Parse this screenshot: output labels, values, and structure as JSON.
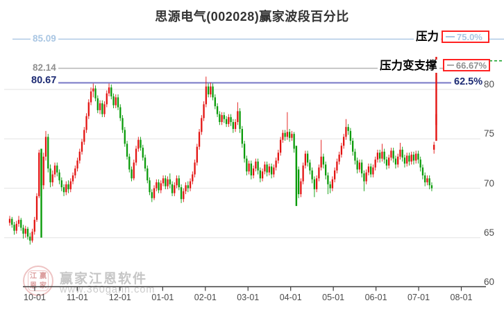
{
  "title": "思源电气(002028)赢家波段百分比",
  "levels": [
    {
      "price": 85.09,
      "price_label": "85.09",
      "percent": "75.0%",
      "label": "压力",
      "line_color": "#a9c6e3",
      "text_color": "#a9c6e3",
      "boxed": true,
      "line_width": 1.4
    },
    {
      "price": 82.14,
      "price_label": "82.14",
      "percent": "66.67%",
      "label": "压力变支撑",
      "line_color": "#b5b5b5",
      "text_color": "#8f8f8f",
      "boxed": true,
      "line_width": 1.4
    },
    {
      "price": 80.67,
      "price_label": "80.67",
      "percent": "62.5%",
      "label": "",
      "line_color": "#7d7dc8",
      "text_color": "#1c2a73",
      "boxed": false,
      "line_width": 2.2
    }
  ],
  "right_dashed_segment": {
    "color": "#1aa32b",
    "at_y_price": 82.9
  },
  "y_axis": {
    "ticks": [
      80,
      75,
      70,
      65,
      60
    ]
  },
  "x_axis": {
    "ticks": [
      "10-01",
      "11-01",
      "12-01",
      "01-01",
      "02-01",
      "03-01",
      "04-01",
      "05-01",
      "06-01",
      "07-01",
      "08-01"
    ]
  },
  "watermark": {
    "line1": "赢家江恩软件",
    "line2": "www.360gann.com",
    "logo_chars": [
      "江",
      "赢",
      "恩",
      "家"
    ]
  },
  "chart_data": {
    "type": "candlestick",
    "title": "思源电气(002028)赢家波段百分比",
    "ylim": [
      60,
      85.8
    ],
    "x_tick_labels": [
      "10-01",
      "11-01",
      "12-01",
      "01-01",
      "02-01",
      "03-01",
      "04-01",
      "05-01",
      "06-01",
      "07-01",
      "08-01"
    ],
    "up_color": "#e31412",
    "down_color": "#0a9b0a",
    "grid": true,
    "candles_ohlc": [
      [
        66.5,
        67.2,
        66.2,
        66.9
      ],
      [
        66.9,
        67.1,
        66.0,
        66.3
      ],
      [
        66.3,
        66.6,
        65.3,
        65.7
      ],
      [
        65.7,
        66.7,
        65.4,
        66.4
      ],
      [
        66.4,
        67.2,
        66.1,
        66.8
      ],
      [
        66.8,
        67.0,
        65.7,
        66.0
      ],
      [
        66.0,
        66.3,
        64.9,
        65.4
      ],
      [
        65.4,
        66.2,
        65.0,
        65.9
      ],
      [
        65.9,
        66.1,
        64.8,
        65.1
      ],
      [
        65.1,
        65.5,
        64.3,
        64.7
      ],
      [
        64.7,
        65.9,
        64.5,
        65.6
      ],
      [
        65.6,
        67.1,
        65.3,
        66.8
      ],
      [
        66.8,
        69.5,
        66.6,
        69.2
      ],
      [
        69.2,
        73.9,
        69.0,
        73.6
      ],
      [
        73.6,
        74.0,
        65.0,
        70.3
      ],
      [
        70.3,
        73.6,
        69.9,
        73.2
      ],
      [
        73.2,
        75.8,
        72.8,
        75.2
      ],
      [
        75.2,
        75.5,
        71.6,
        72.0
      ],
      [
        72.0,
        72.4,
        70.1,
        70.6
      ],
      [
        70.6,
        71.8,
        70.2,
        71.4
      ],
      [
        71.4,
        72.6,
        71.1,
        72.3
      ],
      [
        72.3,
        72.6,
        71.2,
        71.6
      ],
      [
        71.6,
        71.9,
        70.4,
        70.8
      ],
      [
        70.8,
        71.1,
        69.7,
        70.1
      ],
      [
        70.1,
        70.4,
        69.2,
        69.6
      ],
      [
        69.6,
        70.7,
        69.3,
        70.4
      ],
      [
        70.4,
        70.8,
        69.5,
        69.9
      ],
      [
        69.9,
        71.0,
        69.6,
        70.7
      ],
      [
        70.7,
        71.6,
        70.4,
        71.3
      ],
      [
        71.3,
        72.3,
        71.0,
        72.0
      ],
      [
        72.0,
        73.1,
        71.7,
        72.8
      ],
      [
        72.8,
        74.0,
        72.5,
        73.7
      ],
      [
        73.7,
        75.0,
        73.4,
        74.7
      ],
      [
        74.7,
        76.2,
        74.4,
        75.9
      ],
      [
        75.9,
        77.6,
        75.6,
        77.3
      ],
      [
        77.3,
        79.0,
        77.0,
        78.7
      ],
      [
        78.7,
        80.2,
        78.4,
        79.8
      ],
      [
        79.8,
        80.6,
        79.2,
        80.1
      ],
      [
        80.1,
        80.4,
        78.8,
        79.1
      ],
      [
        79.1,
        79.4,
        77.6,
        77.9
      ],
      [
        77.9,
        78.9,
        77.5,
        78.6
      ],
      [
        78.6,
        78.9,
        77.2,
        77.5
      ],
      [
        77.5,
        78.8,
        77.2,
        78.5
      ],
      [
        78.5,
        79.9,
        78.2,
        79.6
      ],
      [
        79.6,
        80.6,
        79.3,
        80.2
      ],
      [
        80.2,
        80.5,
        79.0,
        79.3
      ],
      [
        79.3,
        79.6,
        78.1,
        78.4
      ],
      [
        78.4,
        79.5,
        78.1,
        79.2
      ],
      [
        79.2,
        79.5,
        77.9,
        78.2
      ],
      [
        78.2,
        78.5,
        76.8,
        77.1
      ],
      [
        77.1,
        77.4,
        75.6,
        75.9
      ],
      [
        75.9,
        76.2,
        74.2,
        74.5
      ],
      [
        74.5,
        74.8,
        72.9,
        73.2
      ],
      [
        73.2,
        73.5,
        71.6,
        71.9
      ],
      [
        71.9,
        72.2,
        70.7,
        71.0
      ],
      [
        71.0,
        72.9,
        70.8,
        72.6
      ],
      [
        72.6,
        74.3,
        72.3,
        74.0
      ],
      [
        74.0,
        75.2,
        73.7,
        74.9
      ],
      [
        74.9,
        75.2,
        73.8,
        74.1
      ],
      [
        74.1,
        74.4,
        72.8,
        73.1
      ],
      [
        73.1,
        73.4,
        71.7,
        72.0
      ],
      [
        72.0,
        72.3,
        70.5,
        70.8
      ],
      [
        70.8,
        71.1,
        69.3,
        69.6
      ],
      [
        69.6,
        69.9,
        68.6,
        69.0
      ],
      [
        69.0,
        70.3,
        68.8,
        70.0
      ],
      [
        70.0,
        70.9,
        69.7,
        70.6
      ],
      [
        70.6,
        70.9,
        69.5,
        69.8
      ],
      [
        69.8,
        70.8,
        69.5,
        70.5
      ],
      [
        70.5,
        71.3,
        70.2,
        71.0
      ],
      [
        71.0,
        71.3,
        69.9,
        70.2
      ],
      [
        70.2,
        71.2,
        69.9,
        70.9
      ],
      [
        70.9,
        71.5,
        70.0,
        70.4
      ],
      [
        70.4,
        70.7,
        69.2,
        69.5
      ],
      [
        69.5,
        70.6,
        69.2,
        70.3
      ],
      [
        70.3,
        71.3,
        70.0,
        71.0
      ],
      [
        71.0,
        71.3,
        69.8,
        70.1
      ],
      [
        70.1,
        70.4,
        68.5,
        68.9
      ],
      [
        68.9,
        70.0,
        68.6,
        69.7
      ],
      [
        69.7,
        70.6,
        69.4,
        70.3
      ],
      [
        70.3,
        70.7,
        69.6,
        70.0
      ],
      [
        70.0,
        71.0,
        69.7,
        70.7
      ],
      [
        70.7,
        71.7,
        70.4,
        71.4
      ],
      [
        71.4,
        72.9,
        71.1,
        72.6
      ],
      [
        72.6,
        74.5,
        72.3,
        74.2
      ],
      [
        74.2,
        76.0,
        73.9,
        75.7
      ],
      [
        75.7,
        77.4,
        75.4,
        77.1
      ],
      [
        77.1,
        78.8,
        76.8,
        78.5
      ],
      [
        78.5,
        81.3,
        78.2,
        80.3
      ],
      [
        80.3,
        80.6,
        79.2,
        79.5
      ],
      [
        79.5,
        80.7,
        79.2,
        80.3
      ],
      [
        80.3,
        80.6,
        78.9,
        79.2
      ],
      [
        79.2,
        79.5,
        78.0,
        78.3
      ],
      [
        78.3,
        78.6,
        77.2,
        77.5
      ],
      [
        77.5,
        77.8,
        76.4,
        76.7
      ],
      [
        76.7,
        77.7,
        76.4,
        77.4
      ],
      [
        77.4,
        77.7,
        76.6,
        77.0
      ],
      [
        77.0,
        77.3,
        76.2,
        76.5
      ],
      [
        76.5,
        77.5,
        76.2,
        77.2
      ],
      [
        77.2,
        77.5,
        76.3,
        76.7
      ],
      [
        76.7,
        77.0,
        75.6,
        76.0
      ],
      [
        76.0,
        77.0,
        75.7,
        76.7
      ],
      [
        76.7,
        78.7,
        76.4,
        77.8
      ],
      [
        77.8,
        78.1,
        75.6,
        76.0
      ],
      [
        76.0,
        76.3,
        74.1,
        74.5
      ],
      [
        74.5,
        74.8,
        72.6,
        73.0
      ],
      [
        73.0,
        73.3,
        71.3,
        71.7
      ],
      [
        71.7,
        72.8,
        71.4,
        72.5
      ],
      [
        72.5,
        72.8,
        70.9,
        71.3
      ],
      [
        71.3,
        72.3,
        71.0,
        72.0
      ],
      [
        72.0,
        73.0,
        71.7,
        72.7
      ],
      [
        72.7,
        73.0,
        71.4,
        71.8
      ],
      [
        71.8,
        72.1,
        70.6,
        71.0
      ],
      [
        71.0,
        72.0,
        70.7,
        71.7
      ],
      [
        71.7,
        72.7,
        71.4,
        72.4
      ],
      [
        72.4,
        72.7,
        71.2,
        71.6
      ],
      [
        71.6,
        72.5,
        71.3,
        72.2
      ],
      [
        72.2,
        72.5,
        71.0,
        71.4
      ],
      [
        71.4,
        72.4,
        71.1,
        72.1
      ],
      [
        72.1,
        73.1,
        71.8,
        72.8
      ],
      [
        72.8,
        73.9,
        72.5,
        73.6
      ],
      [
        73.6,
        75.2,
        73.3,
        74.9
      ],
      [
        74.9,
        75.9,
        74.6,
        75.6
      ],
      [
        75.6,
        75.9,
        74.8,
        75.2
      ],
      [
        75.2,
        77.7,
        74.9,
        75.7
      ],
      [
        75.7,
        76.0,
        74.7,
        75.1
      ],
      [
        75.1,
        75.8,
        74.8,
        75.5
      ],
      [
        75.5,
        75.7,
        73.6,
        74.0
      ],
      [
        74.0,
        74.3,
        68.2,
        71.9
      ],
      [
        71.9,
        72.2,
        69.0,
        69.4
      ],
      [
        69.4,
        71.0,
        69.1,
        70.7
      ],
      [
        70.7,
        72.6,
        70.4,
        72.3
      ],
      [
        72.3,
        73.8,
        72.0,
        73.5
      ],
      [
        73.5,
        73.8,
        72.2,
        72.6
      ],
      [
        72.6,
        72.9,
        71.4,
        71.8
      ],
      [
        71.8,
        72.1,
        70.5,
        70.9
      ],
      [
        70.9,
        71.2,
        69.1,
        69.9
      ],
      [
        69.9,
        71.3,
        69.6,
        71.0
      ],
      [
        71.0,
        72.4,
        70.7,
        72.1
      ],
      [
        72.1,
        74.9,
        71.8,
        73.2
      ],
      [
        73.2,
        73.5,
        72.0,
        72.4
      ],
      [
        72.4,
        72.7,
        70.9,
        71.3
      ],
      [
        71.3,
        71.6,
        69.4,
        70.4
      ],
      [
        70.4,
        70.7,
        69.5,
        70.0
      ],
      [
        70.0,
        71.2,
        69.7,
        70.9
      ],
      [
        70.9,
        72.1,
        70.6,
        71.8
      ],
      [
        71.8,
        73.0,
        71.5,
        72.7
      ],
      [
        72.7,
        73.7,
        72.4,
        73.4
      ],
      [
        73.4,
        74.6,
        73.1,
        74.3
      ],
      [
        74.3,
        75.5,
        74.0,
        75.2
      ],
      [
        75.2,
        77.0,
        74.9,
        76.2
      ],
      [
        76.2,
        76.5,
        75.4,
        75.8
      ],
      [
        75.8,
        76.1,
        74.4,
        74.8
      ],
      [
        74.8,
        75.1,
        73.3,
        73.7
      ],
      [
        73.7,
        74.0,
        72.4,
        72.8
      ],
      [
        72.8,
        73.1,
        71.5,
        71.9
      ],
      [
        71.9,
        72.9,
        71.6,
        72.6
      ],
      [
        72.6,
        72.9,
        71.1,
        71.5
      ],
      [
        71.5,
        71.8,
        69.7,
        70.7
      ],
      [
        70.7,
        71.9,
        70.4,
        71.6
      ],
      [
        71.6,
        72.5,
        71.3,
        72.2
      ],
      [
        72.2,
        72.5,
        71.1,
        71.4
      ],
      [
        71.4,
        72.4,
        71.1,
        72.1
      ],
      [
        72.1,
        73.2,
        71.8,
        72.9
      ],
      [
        72.9,
        73.9,
        72.6,
        73.6
      ],
      [
        73.6,
        73.9,
        72.6,
        73.0
      ],
      [
        73.0,
        74.5,
        72.7,
        73.7
      ],
      [
        73.7,
        74.0,
        72.5,
        72.9
      ],
      [
        72.9,
        73.2,
        71.9,
        72.3
      ],
      [
        72.3,
        73.4,
        72.0,
        73.1
      ],
      [
        73.1,
        74.1,
        72.8,
        73.8
      ],
      [
        73.8,
        74.1,
        72.6,
        73.0
      ],
      [
        73.0,
        73.3,
        72.0,
        72.4
      ],
      [
        72.4,
        73.5,
        72.1,
        73.2
      ],
      [
        73.2,
        74.6,
        72.9,
        73.9
      ],
      [
        73.9,
        74.2,
        72.7,
        73.1
      ],
      [
        73.1,
        73.4,
        72.1,
        72.5
      ],
      [
        72.5,
        73.6,
        72.2,
        73.3
      ],
      [
        73.3,
        73.6,
        72.3,
        72.7
      ],
      [
        72.7,
        73.7,
        72.4,
        73.4
      ],
      [
        73.4,
        73.7,
        72.4,
        72.8
      ],
      [
        72.8,
        73.8,
        72.5,
        73.5
      ],
      [
        73.5,
        73.8,
        72.5,
        72.9
      ],
      [
        72.9,
        73.2,
        71.7,
        72.1
      ],
      [
        72.1,
        72.4,
        70.9,
        71.3
      ],
      [
        71.3,
        71.6,
        70.2,
        70.6
      ],
      [
        70.6,
        71.3,
        70.3,
        71.0
      ],
      [
        71.0,
        71.3,
        69.9,
        70.3
      ],
      [
        70.3,
        70.6,
        69.7,
        70.0
      ],
      [
        73.9,
        74.7,
        73.5,
        74.4
      ],
      [
        76.4,
        83.3,
        74.8,
        77.5
      ]
    ]
  }
}
